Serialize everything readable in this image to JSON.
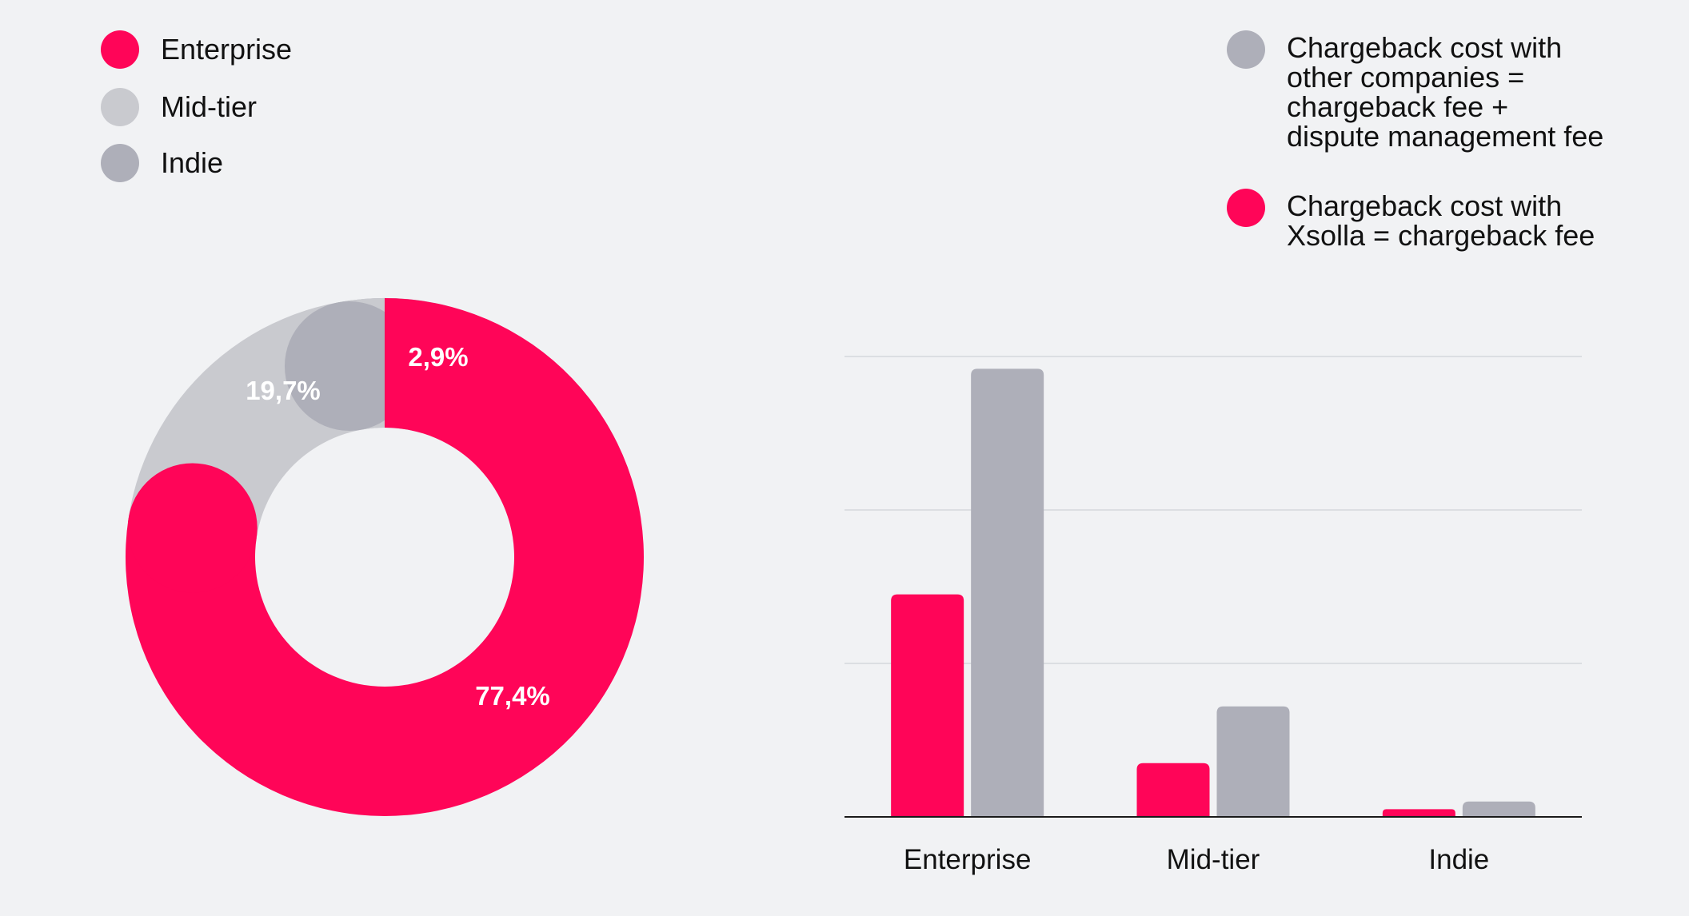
{
  "chart_data": [
    {
      "type": "pie",
      "variant": "donut",
      "categories": [
        "Enterprise",
        "Mid-tier",
        "Indie"
      ],
      "values": [
        77.4,
        19.7,
        2.9
      ],
      "labels": [
        "77,4%",
        "19,7%",
        "2,9%"
      ],
      "colors": [
        "#ff0558",
        "#c9cacf",
        "#aeafb9"
      ],
      "legend_position": "top-left"
    },
    {
      "type": "bar",
      "categories": [
        "Enterprise",
        "Mid-tier",
        "Indie"
      ],
      "series": [
        {
          "name": "Chargeback cost with Xsolla = chargeback fee",
          "values": [
            1.45,
            0.35,
            0.05
          ],
          "color": "#ff0558"
        },
        {
          "name": "Chargeback cost with other companies = chargeback fee + dispute management fee",
          "values": [
            2.92,
            0.72,
            0.1
          ],
          "color": "#aeafb9"
        }
      ],
      "ylim": [
        0,
        3
      ],
      "grid": true,
      "y_tick_labels_shown": false,
      "legend_position": "top-right"
    }
  ],
  "legend_donut": [
    {
      "label": "Enterprise",
      "color": "#ff0558"
    },
    {
      "label": "Mid-tier",
      "color": "#c9cacf"
    },
    {
      "label": "Indie",
      "color": "#aeafb9"
    }
  ],
  "legend_bars": [
    {
      "label": "Chargeback cost with\nother companies =\nchargeback fee +\ndispute management fee",
      "color": "#aeafb9"
    },
    {
      "label": "Chargeback cost with\nXsolla = chargeback fee",
      "color": "#ff0558"
    }
  ]
}
